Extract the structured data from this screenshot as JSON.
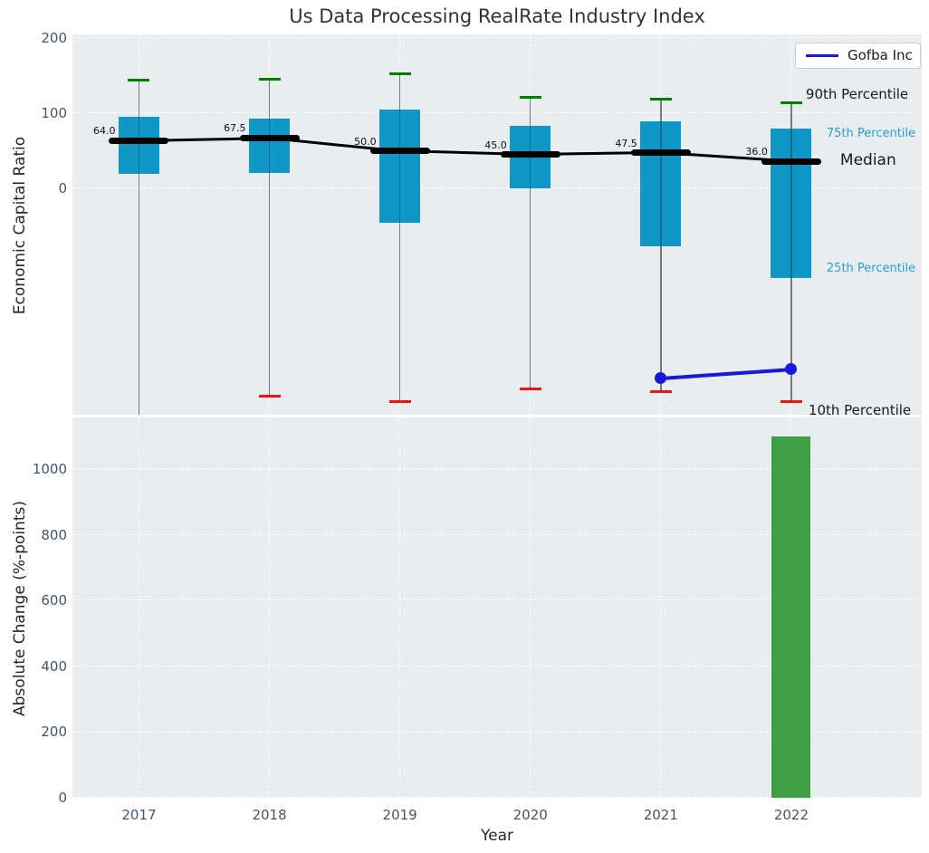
{
  "figure": {
    "title": "Us Data Processing RealRate Industry Index",
    "axes_background": "#e8edf0",
    "tick_color": "#44566b"
  },
  "legend": {
    "label": "Gofba Inc",
    "line_color": "#1818dd",
    "position": "top-right"
  },
  "annotations": {
    "p90": "90th Percentile",
    "p75": "75th Percentile",
    "median": "Median",
    "p25": "25th Percentile",
    "p10": "10th Percentile"
  },
  "chart_data": [
    {
      "type": "percentile-box-timeseries",
      "title": "Us Data Processing RealRate Industry Index",
      "ylabel": "Economic Capital Ratio",
      "x": [
        2017,
        2018,
        2019,
        2020,
        2021,
        2022
      ],
      "median": [
        64.0,
        67.5,
        50.0,
        45.0,
        47.5,
        36.0
      ],
      "median_labels": [
        "64.0",
        "67.5",
        "50.0",
        "45.0",
        "47.5",
        "36.0"
      ],
      "p75": [
        95,
        93,
        105,
        83,
        89,
        80
      ],
      "p25": [
        20,
        21,
        -45,
        0,
        -77,
        -119
      ],
      "p90": [
        144,
        145,
        152,
        121,
        119,
        114
      ],
      "p10": [
        -330,
        -276,
        -283,
        -267,
        -270,
        -283
      ],
      "p10_2017_note": "whisker extends below visible axis range (clipped)",
      "yticks": [
        0,
        100,
        200
      ],
      "ylim": [
        -301,
        205
      ],
      "xlim": [
        2016.49,
        2023
      ],
      "grid": true,
      "legend_position": "upper right",
      "colors": {
        "box": "#0f97c7",
        "median_line": "#000000",
        "p90_cap": "#008000",
        "p10_cap": "#f01515",
        "whisker": "#7a7a7a",
        "annotation_blue": "#2a9fd0"
      },
      "series": [
        {
          "name": "Gofba Inc",
          "x": [
            2021,
            2022
          ],
          "y": [
            -252,
            -240
          ],
          "color": "#1818dd"
        }
      ]
    },
    {
      "type": "bar",
      "ylabel": "Absolute Change (%-points)",
      "xlabel": "Year",
      "categories": [
        "2017",
        "2018",
        "2019",
        "2020",
        "2021",
        "2022"
      ],
      "values": [
        null,
        null,
        null,
        null,
        null,
        1100
      ],
      "bar_color": "#3f9e43",
      "yticks": [
        0,
        200,
        400,
        600,
        800,
        1000
      ],
      "ylim": [
        0,
        1157
      ],
      "grid": true
    }
  ]
}
